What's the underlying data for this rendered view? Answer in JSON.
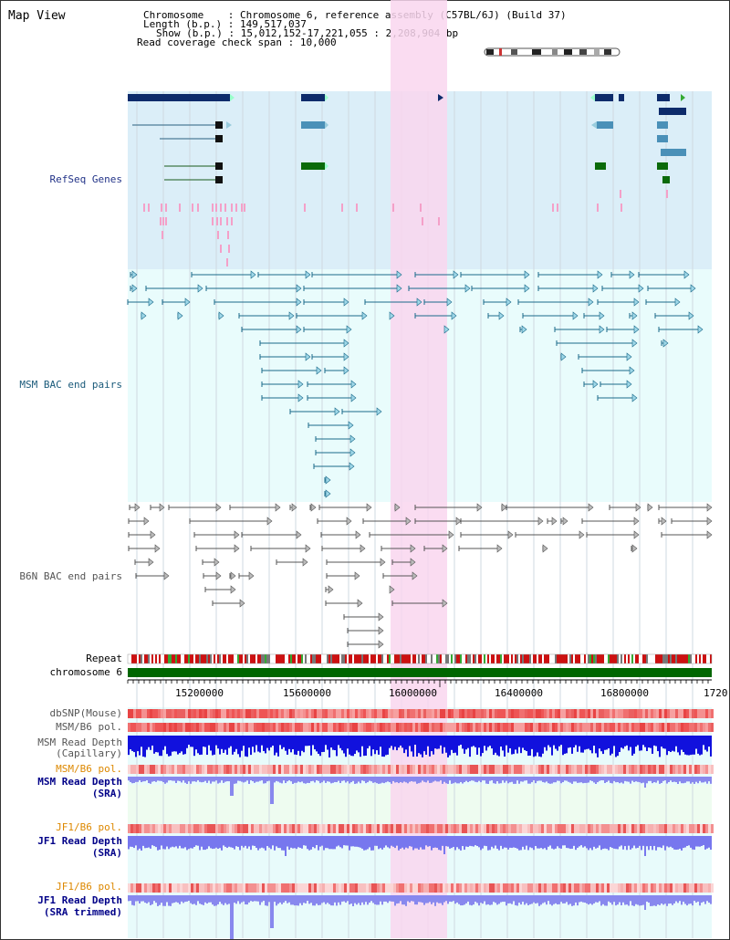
{
  "title": "Map View",
  "info": {
    "chromosome_label": "Chromosome",
    "chromosome_value": "Chromosome 6, reference assembly (C57BL/6J) (Build 37)",
    "length_label": "Length (b.p.)",
    "length_value": "149,517,037",
    "show_label": "Show (b.p.)",
    "show_value": "15,012,152-17,221,055 : 2,208,904 bp",
    "coverage_label": "Read coverage check span",
    "coverage_value": "10,000"
  },
  "tracks": {
    "refseq": "RefSeq Genes",
    "msm_bac": "MSM BAC end pairs",
    "b6n_bac": "B6N BAC end pairs",
    "repeat": "Repeat",
    "chromosome": "chromosome 6",
    "dbsnp": "dbSNP(Mouse)",
    "msm_b6_pol_1": "MSM/B6 pol.",
    "msm_depth_cap_1": "MSM Read Depth",
    "msm_depth_cap_2": "(Capillary)",
    "msm_b6_pol_2": "MSM/B6 pol.",
    "msm_depth_sra_1": "MSM Read Depth",
    "msm_depth_sra_2": "(SRA)",
    "jf1_b6_pol_1": "JF1/B6 pol.",
    "jf1_depth_sra_1": "JF1 Read Depth",
    "jf1_depth_sra_2": "(SRA)",
    "jf1_b6_pol_2": "JF1/B6 pol.",
    "jf1_depth_trim_1": "JF1 Read Depth",
    "jf1_depth_trim_2": "(SRA trimmed)"
  },
  "axis_ticks": [
    "15200000",
    "15600000",
    "16000000",
    "16400000",
    "16800000",
    "1720"
  ],
  "colors": {
    "refseq_bg": "#dbeef8",
    "msm_bg": "#e8fbfb",
    "highlight": "#f8d8f0",
    "chromosome_bar": "#006600",
    "depth_blue": "#1111dd",
    "depth_light": "#8888ee"
  }
}
